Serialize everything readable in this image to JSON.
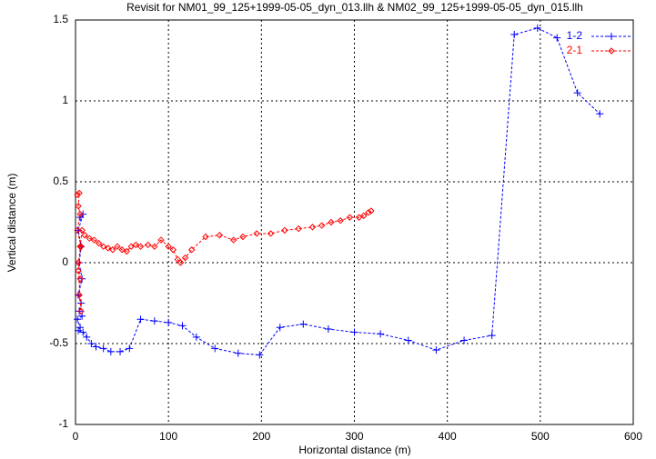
{
  "chart_data": {
    "type": "line",
    "title": "Revisit for NM01_99_125+1999-05-05_dyn_013.llh & NM02_99_125+1999-05-05_dyn_015.llh",
    "x_label": "Horizontal distance (m)",
    "y_label": "Vertical distance (m)",
    "xlim": [
      0,
      600
    ],
    "xticks": [
      0,
      100,
      200,
      300,
      400,
      500,
      600
    ],
    "ylim": [
      -1,
      1.5
    ],
    "yticks": [
      -1,
      -0.5,
      0,
      0.5,
      1,
      1.5
    ],
    "grid": true,
    "legend": "top-right",
    "series": [
      {
        "name": "1-2",
        "color": "#0000ff",
        "marker": "plus",
        "x": [
          5,
          8,
          3,
          6,
          4,
          7,
          3,
          6,
          4,
          7,
          2,
          5,
          3,
          8,
          12,
          17,
          22,
          30,
          38,
          48,
          58,
          70,
          85,
          100,
          115,
          130,
          150,
          175,
          198,
          220,
          245,
          272,
          300,
          328,
          358,
          388,
          418,
          448,
          472,
          497,
          518,
          540,
          564
        ],
        "values": [
          0.28,
          0.3,
          0.2,
          0.1,
          0,
          -0.1,
          -0.2,
          -0.25,
          -0.3,
          -0.33,
          -0.35,
          -0.4,
          -0.42,
          -0.43,
          -0.46,
          -0.5,
          -0.52,
          -0.53,
          -0.55,
          -0.55,
          -0.53,
          -0.35,
          -0.36,
          -0.37,
          -0.39,
          -0.46,
          -0.53,
          -0.56,
          -0.57,
          -0.4,
          -0.38,
          -0.41,
          -0.43,
          -0.44,
          -0.48,
          -0.54,
          -0.48,
          -0.45,
          1.41,
          1.45,
          1.39,
          1.05,
          0.92
        ]
      },
      {
        "name": "2-1",
        "color": "#ff0000",
        "marker": "diamond",
        "x": [
          2,
          4,
          3,
          5,
          2,
          6,
          3,
          5,
          4,
          6,
          3,
          5,
          7,
          10,
          15,
          20,
          25,
          30,
          35,
          40,
          45,
          50,
          55,
          60,
          65,
          70,
          78,
          85,
          92,
          100,
          105,
          110,
          113,
          118,
          125,
          140,
          155,
          170,
          180,
          195,
          210,
          225,
          240,
          255,
          265,
          275,
          285,
          295,
          305,
          310,
          315,
          318
        ],
        "values": [
          0.42,
          0.43,
          0.35,
          0.3,
          0.2,
          0.1,
          0,
          -0.1,
          -0.2,
          -0.3,
          -0.05,
          0.1,
          0.2,
          0.17,
          0.15,
          0.14,
          0.12,
          0.1,
          0.09,
          0.08,
          0.1,
          0.08,
          0.07,
          0.1,
          0.11,
          0.1,
          0.11,
          0.1,
          0.14,
          0.1,
          0.08,
          0.02,
          0,
          0.03,
          0.08,
          0.16,
          0.17,
          0.14,
          0.16,
          0.18,
          0.18,
          0.2,
          0.21,
          0.22,
          0.23,
          0.25,
          0.26,
          0.28,
          0.28,
          0.29,
          0.31,
          0.32
        ]
      }
    ]
  }
}
